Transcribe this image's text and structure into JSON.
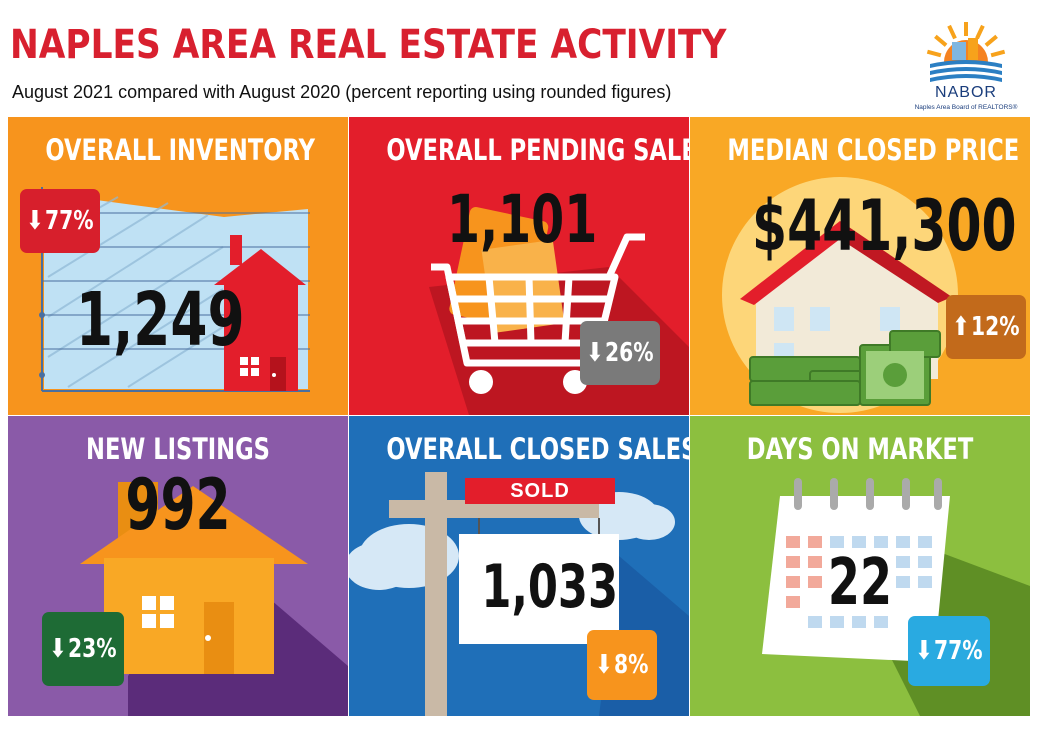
{
  "header": {
    "title": "NAPLES AREA REAL ESTATE ACTIVITY",
    "subtitle": "August 2021 compared with August 2020 (percent reporting using rounded figures)"
  },
  "logo": {
    "name": "NABOR",
    "tagline": "Naples Area Board of REALTORS®"
  },
  "tiles": [
    {
      "title": "OVERALL INVENTORY",
      "value": "1,249",
      "change": "77%",
      "direction": "down",
      "color": "#f7941d",
      "icon": "house-inventory-chart-icon"
    },
    {
      "title": "OVERALL PENDING SALES",
      "value": "1,101",
      "change": "26%",
      "direction": "down",
      "color": "#e31e2b",
      "icon": "shopping-cart-icon"
    },
    {
      "title": "MEDIAN CLOSED PRICE",
      "value": "$441,300",
      "change": "12%",
      "direction": "up",
      "color": "#f9a825",
      "icon": "house-money-icon"
    },
    {
      "title": "NEW LISTINGS",
      "value": "992",
      "change": "23%",
      "direction": "down",
      "color": "#8a5aa8",
      "icon": "house-icon"
    },
    {
      "title": "OVERALL CLOSED SALES",
      "value": "1,033",
      "change": "8%",
      "direction": "down",
      "color": "#1f6fb8",
      "icon": "sold-sign-icon",
      "sign_label": "SOLD"
    },
    {
      "title": "DAYS ON MARKET",
      "value": "22",
      "change": "77%",
      "direction": "down",
      "color": "#8cbf3f",
      "icon": "calendar-icon"
    }
  ],
  "colors": {
    "title_red": "#d8202f",
    "badge_red": "#d71f2c",
    "badge_gray": "#7a7a7a",
    "badge_brown": "#c26a1b",
    "badge_green": "#1e6b35",
    "badge_orange": "#f7941d",
    "badge_blue": "#29aae1"
  },
  "arrows": {
    "down": "⬇",
    "up": "⬆"
  }
}
